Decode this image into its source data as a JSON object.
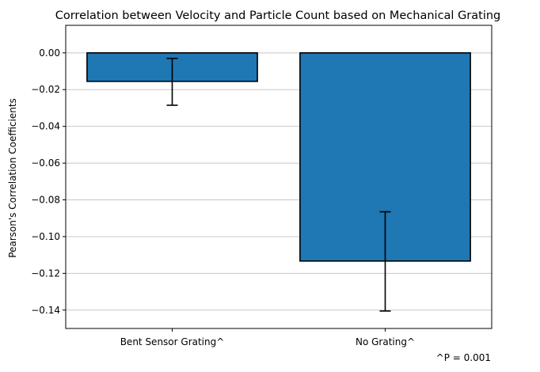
{
  "chart_data": {
    "type": "bar",
    "title": "Correlation between Velocity and Particle Count based on Mechanical Grating",
    "xlabel": "",
    "ylabel": "Pearson's Correlation Coefficients",
    "categories": [
      "Bent Sensor Grating^",
      "No Grating^"
    ],
    "values": [
      -0.0155,
      -0.1133
    ],
    "error_low": [
      -0.0285,
      -0.1405
    ],
    "error_high": [
      -0.003,
      -0.0865
    ],
    "ylim": [
      -0.15,
      0.015
    ],
    "yticks": [
      0.0,
      -0.02,
      -0.04,
      -0.06,
      -0.08,
      -0.1,
      -0.12,
      -0.14
    ],
    "ytick_labels": [
      "0.00",
      "−0.02",
      "−0.04",
      "−0.06",
      "−0.08",
      "−0.10",
      "−0.12",
      "−0.14"
    ],
    "grid": "horizontal",
    "bar_color": "#1f77b4",
    "annotation": "^P = 0.001"
  }
}
